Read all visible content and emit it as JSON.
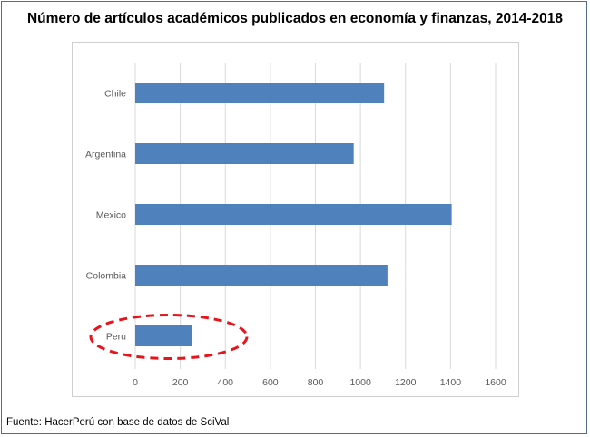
{
  "source": "Fuente: HacerPerú con base de datos de SciVal",
  "colors": {
    "bar": "#4f81bd",
    "grid": "#d9d9d9",
    "highlight": "#e8141b",
    "tick_text": "#595959"
  },
  "chart_data": {
    "type": "bar",
    "orientation": "horizontal",
    "title": "Número de artículos académicos publicados en economía y finanzas, 2014-2018",
    "xlabel": "",
    "ylabel": "",
    "categories": [
      "Chile",
      "Argentina",
      "Mexico",
      "Colombia",
      "Peru"
    ],
    "values": [
      1105,
      970,
      1405,
      1120,
      250
    ],
    "xlim": [
      0,
      1600
    ],
    "xticks": [
      0,
      200,
      400,
      600,
      800,
      1000,
      1200,
      1400,
      1600
    ],
    "grid": "vertical",
    "legend": "none",
    "highlighted_category": "Peru"
  }
}
